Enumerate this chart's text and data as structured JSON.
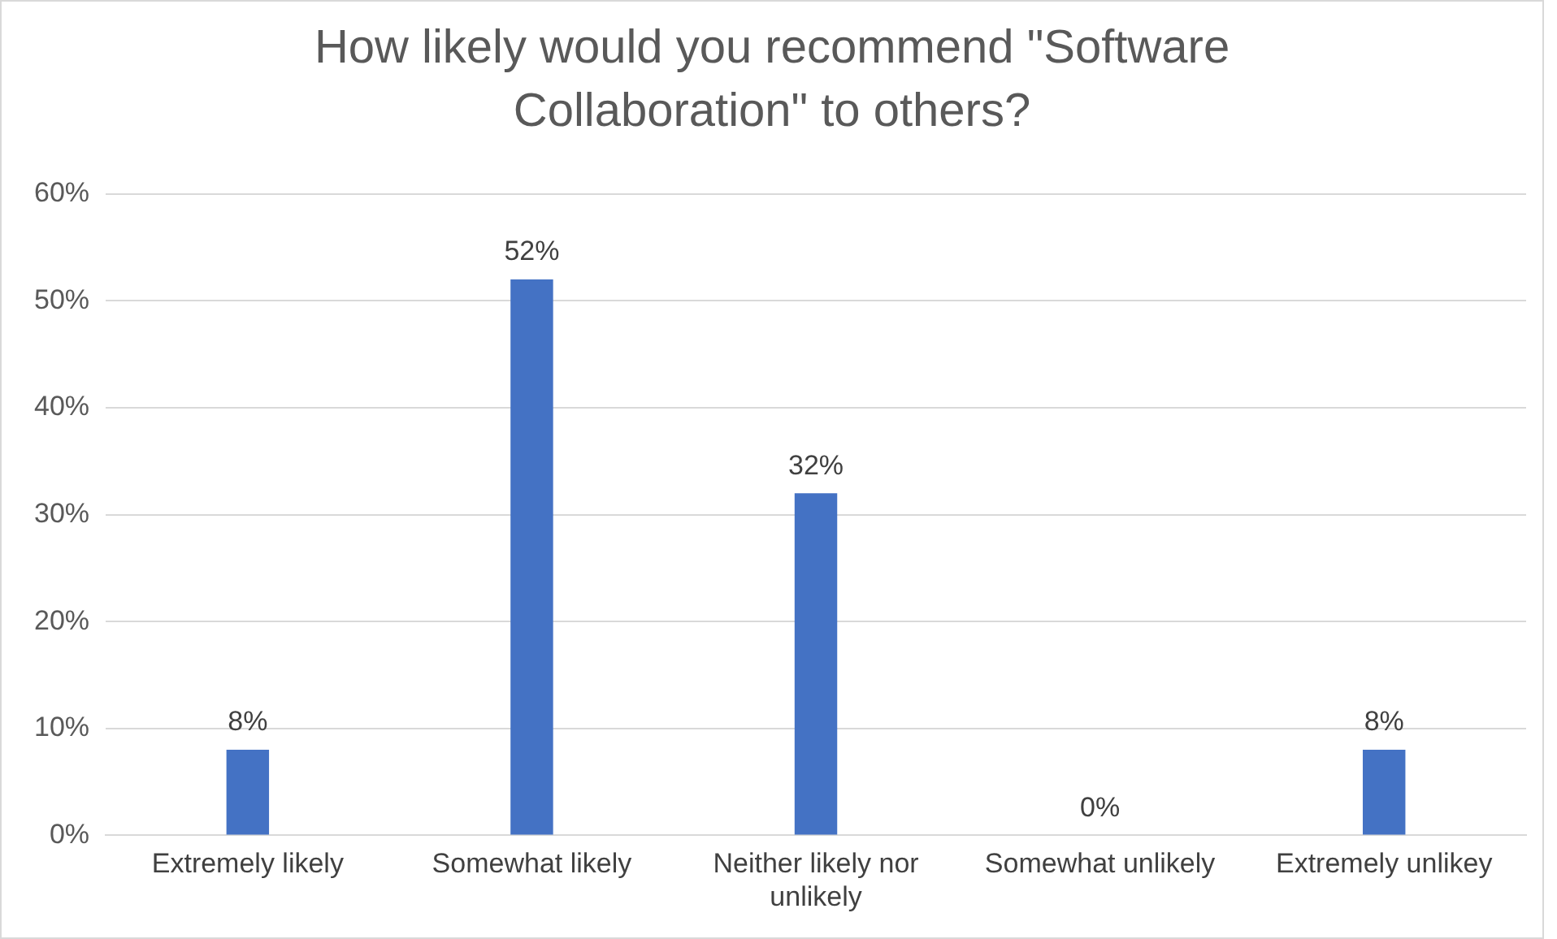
{
  "chart_data": {
    "type": "bar",
    "title": "How likely would you recommend \"Software Collaboration\" to others?",
    "categories": [
      "Extremely likely",
      "Somewhat likely",
      "Neither likely nor unlikely",
      "Somewhat unlikely",
      "Extremely unlikey"
    ],
    "values": [
      8,
      52,
      32,
      0,
      8
    ],
    "value_labels": [
      "8%",
      "52%",
      "32%",
      "0%",
      "8%"
    ],
    "color": "#4472c4",
    "ylim": [
      0,
      60
    ],
    "yticks": [
      {
        "value": 0,
        "label": "0%"
      },
      {
        "value": 10,
        "label": "10%"
      },
      {
        "value": 20,
        "label": "20%"
      },
      {
        "value": 30,
        "label": "30%"
      },
      {
        "value": 40,
        "label": "40%"
      },
      {
        "value": 50,
        "label": "50%"
      },
      {
        "value": 60,
        "label": "60%"
      }
    ],
    "grid": "y",
    "legend": false
  }
}
